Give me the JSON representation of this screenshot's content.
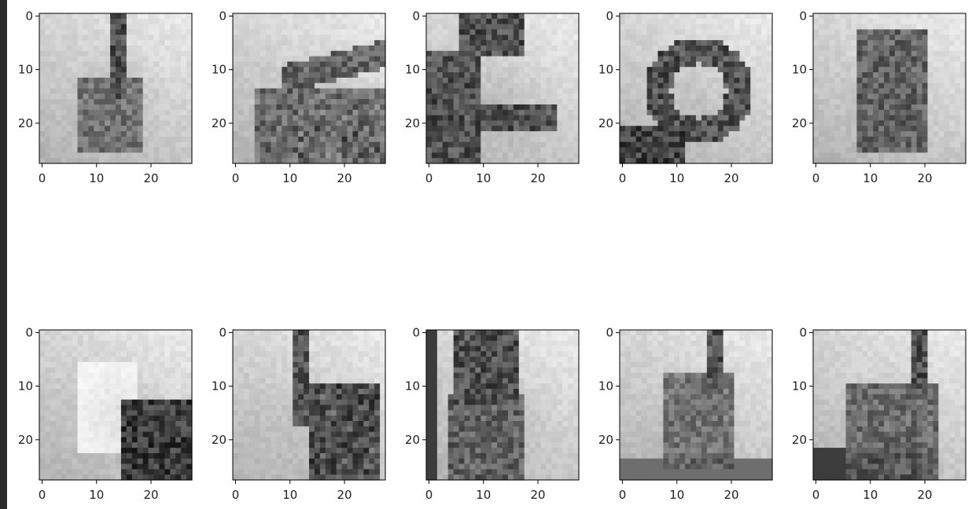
{
  "chart_data": [
    {
      "type": "image-grid",
      "row": 0,
      "col": 0,
      "image_kind": "grayscale",
      "motif": "index-finger-up",
      "xlim": [
        0,
        27
      ],
      "ylim": [
        27,
        0
      ],
      "xticks": [
        0,
        10,
        20
      ],
      "yticks": [
        0,
        10,
        20
      ],
      "xtick_labels": [
        "0",
        "10",
        "20"
      ],
      "ytick_labels": [
        "0",
        "10",
        "20"
      ]
    },
    {
      "type": "image-grid",
      "row": 0,
      "col": 1,
      "image_kind": "grayscale",
      "motif": "sideways-pointing",
      "xlim": [
        0,
        27
      ],
      "ylim": [
        27,
        0
      ],
      "xticks": [
        0,
        10,
        20
      ],
      "yticks": [
        0,
        10,
        20
      ],
      "xtick_labels": [
        "0",
        "10",
        "20"
      ],
      "ytick_labels": [
        "0",
        "10",
        "20"
      ]
    },
    {
      "type": "image-grid",
      "row": 0,
      "col": 2,
      "image_kind": "grayscale",
      "motif": "c-shape",
      "xlim": [
        0,
        27
      ],
      "ylim": [
        27,
        0
      ],
      "xticks": [
        0,
        10,
        20
      ],
      "yticks": [
        0,
        10,
        20
      ],
      "xtick_labels": [
        "0",
        "10",
        "20"
      ],
      "ytick_labels": [
        "0",
        "10",
        "20"
      ]
    },
    {
      "type": "image-grid",
      "row": 0,
      "col": 3,
      "image_kind": "grayscale",
      "motif": "o-shape",
      "xlim": [
        0,
        27
      ],
      "ylim": [
        27,
        0
      ],
      "xticks": [
        0,
        10,
        20
      ],
      "yticks": [
        0,
        10,
        20
      ],
      "xtick_labels": [
        "0",
        "10",
        "20"
      ],
      "ytick_labels": [
        "0",
        "10",
        "20"
      ]
    },
    {
      "type": "image-grid",
      "row": 0,
      "col": 4,
      "image_kind": "grayscale",
      "motif": "closed-fist",
      "xlim": [
        0,
        27
      ],
      "ylim": [
        27,
        0
      ],
      "xticks": [
        0,
        10,
        20
      ],
      "yticks": [
        0,
        10,
        20
      ],
      "xtick_labels": [
        "0",
        "10",
        "20"
      ],
      "ytick_labels": [
        "0",
        "10",
        "20"
      ]
    },
    {
      "type": "image-grid",
      "row": 1,
      "col": 0,
      "image_kind": "grayscale",
      "motif": "bright-hand-dark-shadow",
      "xlim": [
        0,
        27
      ],
      "ylim": [
        27,
        0
      ],
      "xticks": [
        0,
        10,
        20
      ],
      "yticks": [
        0,
        10,
        20
      ],
      "xtick_labels": [
        "0",
        "10",
        "20"
      ],
      "ytick_labels": [
        "0",
        "10",
        "20"
      ]
    },
    {
      "type": "image-grid",
      "row": 1,
      "col": 1,
      "image_kind": "grayscale",
      "motif": "index-and-fingers",
      "xlim": [
        0,
        27
      ],
      "ylim": [
        27,
        0
      ],
      "xticks": [
        0,
        10,
        20
      ],
      "yticks": [
        0,
        10,
        20
      ],
      "xtick_labels": [
        "0",
        "10",
        "20"
      ],
      "ytick_labels": [
        "0",
        "10",
        "20"
      ]
    },
    {
      "type": "image-grid",
      "row": 1,
      "col": 2,
      "image_kind": "grayscale",
      "motif": "open-four-fingers",
      "xlim": [
        0,
        27
      ],
      "ylim": [
        27,
        0
      ],
      "xticks": [
        0,
        10,
        20
      ],
      "yticks": [
        0,
        10,
        20
      ],
      "xtick_labels": [
        "0",
        "10",
        "20"
      ],
      "ytick_labels": [
        "0",
        "10",
        "20"
      ]
    },
    {
      "type": "image-grid",
      "row": 1,
      "col": 3,
      "image_kind": "grayscale",
      "motif": "fist-index-up",
      "xlim": [
        0,
        27
      ],
      "ylim": [
        27,
        0
      ],
      "xticks": [
        0,
        10,
        20
      ],
      "yticks": [
        0,
        10,
        20
      ],
      "xtick_labels": [
        "0",
        "10",
        "20"
      ],
      "ytick_labels": [
        "0",
        "10",
        "20"
      ]
    },
    {
      "type": "image-grid",
      "row": 1,
      "col": 4,
      "image_kind": "grayscale",
      "motif": "pointing-up-fist",
      "xlim": [
        0,
        27
      ],
      "ylim": [
        27,
        0
      ],
      "xticks": [
        0,
        10,
        20
      ],
      "yticks": [
        0,
        10,
        20
      ],
      "xtick_labels": [
        "0",
        "10",
        "20"
      ],
      "ytick_labels": [
        "0",
        "10",
        "20"
      ]
    }
  ],
  "colors": {
    "frame": "#000000",
    "tick_text": "#222222",
    "left_strip": "#2b2b2b",
    "background": "#ffffff"
  }
}
